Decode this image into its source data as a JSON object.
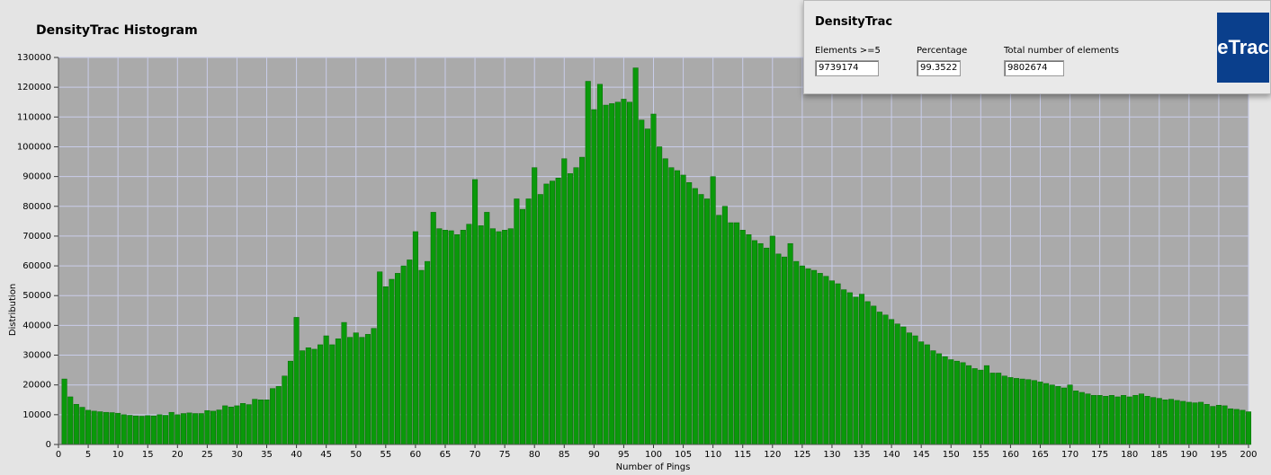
{
  "chart_data": {
    "type": "bar",
    "title": "DensityTrac Histogram",
    "xlabel": "Number of Pings",
    "ylabel": "Distribution",
    "color": "#0a990a",
    "grid": true,
    "x": [
      1,
      2,
      3,
      4,
      5,
      6,
      7,
      8,
      9,
      10,
      11,
      12,
      13,
      14,
      15,
      16,
      17,
      18,
      19,
      20,
      21,
      22,
      23,
      24,
      25,
      26,
      27,
      28,
      29,
      30,
      31,
      32,
      33,
      34,
      35,
      36,
      37,
      38,
      39,
      40,
      41,
      42,
      43,
      44,
      45,
      46,
      47,
      48,
      49,
      50,
      51,
      52,
      53,
      54,
      55,
      56,
      57,
      58,
      59,
      60,
      61,
      62,
      63,
      64,
      65,
      66,
      67,
      68,
      69,
      70,
      71,
      72,
      73,
      74,
      75,
      76,
      77,
      78,
      79,
      80,
      81,
      82,
      83,
      84,
      85,
      86,
      87,
      88,
      89,
      90,
      91,
      92,
      93,
      94,
      95,
      96,
      97,
      98,
      99,
      100,
      101,
      102,
      103,
      104,
      105,
      106,
      107,
      108,
      109,
      110,
      111,
      112,
      113,
      114,
      115,
      116,
      117,
      118,
      119,
      120,
      121,
      122,
      123,
      124,
      125,
      126,
      127,
      128,
      129,
      130,
      131,
      132,
      133,
      134,
      135,
      136,
      137,
      138,
      139,
      140,
      141,
      142,
      143,
      144,
      145,
      146,
      147,
      148,
      149,
      150,
      151,
      152,
      153,
      154,
      155,
      156,
      157,
      158,
      159,
      160,
      161,
      162,
      163,
      164,
      165,
      166,
      167,
      168,
      169,
      170,
      171,
      172,
      173,
      174,
      175,
      176,
      177,
      178,
      179,
      180,
      181,
      182,
      183,
      184,
      185,
      186,
      187,
      188,
      189,
      190,
      191,
      192,
      193,
      194,
      195,
      196,
      197,
      198,
      199,
      200
    ],
    "values": [
      22000,
      16000,
      13500,
      12500,
      11500,
      11200,
      11000,
      10800,
      10700,
      10500,
      10000,
      9800,
      9600,
      9500,
      9700,
      9600,
      10000,
      9800,
      10800,
      10000,
      10400,
      10600,
      10400,
      10400,
      11400,
      11200,
      11600,
      13000,
      12600,
      13000,
      13800,
      13400,
      15200,
      15000,
      15000,
      18800,
      19500,
      23000,
      28000,
      42700,
      31500,
      32500,
      32000,
      33500,
      36500,
      33500,
      35500,
      41000,
      36000,
      37500,
      36000,
      37000,
      39000,
      58000,
      53000,
      55500,
      57500,
      60000,
      62000,
      71500,
      58500,
      61500,
      78000,
      72500,
      72000,
      71800,
      70500,
      72000,
      74000,
      89000,
      73500,
      78000,
      72500,
      71500,
      72000,
      72500,
      82500,
      79000,
      82500,
      93000,
      84000,
      87500,
      88500,
      89500,
      96000,
      91000,
      93000,
      96500,
      122000,
      112500,
      121000,
      114000,
      114500,
      115000,
      116000,
      115000,
      126500,
      109000,
      106000,
      111000,
      100000,
      96000,
      93000,
      92000,
      90500,
      88000,
      86000,
      84000,
      82500,
      90000,
      77000,
      80000,
      74500,
      74500,
      72000,
      70500,
      68500,
      67500,
      66000,
      70000,
      64000,
      63000,
      67500,
      61500,
      60000,
      59000,
      58500,
      57500,
      56500,
      55000,
      54000,
      52000,
      51000,
      49500,
      50500,
      48000,
      46500,
      44500,
      43500,
      42000,
      40500,
      39500,
      37500,
      36500,
      34500,
      33500,
      31500,
      30500,
      29500,
      28500,
      28000,
      27500,
      26500,
      25500,
      25000,
      26500,
      24000,
      24000,
      23000,
      22500,
      22200,
      22000,
      21800,
      21500,
      21000,
      20500,
      20000,
      19500,
      19000,
      20000,
      18000,
      17500,
      17000,
      16500,
      16500,
      16200,
      16500,
      16000,
      16500,
      16000,
      16500,
      17000,
      16200,
      15800,
      15500,
      15000,
      15200,
      14800,
      14500,
      14200,
      14000,
      14200,
      13500,
      12800,
      13200,
      13000,
      12000,
      11800,
      11500,
      11000
    ],
    "xlim": [
      0,
      200
    ],
    "xticks": [
      0,
      5,
      10,
      15,
      20,
      25,
      30,
      35,
      40,
      45,
      50,
      55,
      60,
      65,
      70,
      75,
      80,
      85,
      90,
      95,
      100,
      105,
      110,
      115,
      120,
      125,
      130,
      135,
      140,
      145,
      150,
      155,
      160,
      165,
      170,
      175,
      180,
      185,
      190,
      195,
      200
    ],
    "ylim": [
      0,
      130000
    ],
    "yticks": [
      0,
      10000,
      20000,
      30000,
      40000,
      50000,
      60000,
      70000,
      80000,
      90000,
      100000,
      110000,
      120000,
      130000
    ]
  },
  "panel": {
    "title": "DensityTrac",
    "logo": "eTrac",
    "fields": [
      {
        "label": "Elements >=5",
        "value": "9739174"
      },
      {
        "label": "Percentage",
        "value": "99.3522"
      },
      {
        "label": "Total number of elements",
        "value": "9802674"
      }
    ]
  }
}
